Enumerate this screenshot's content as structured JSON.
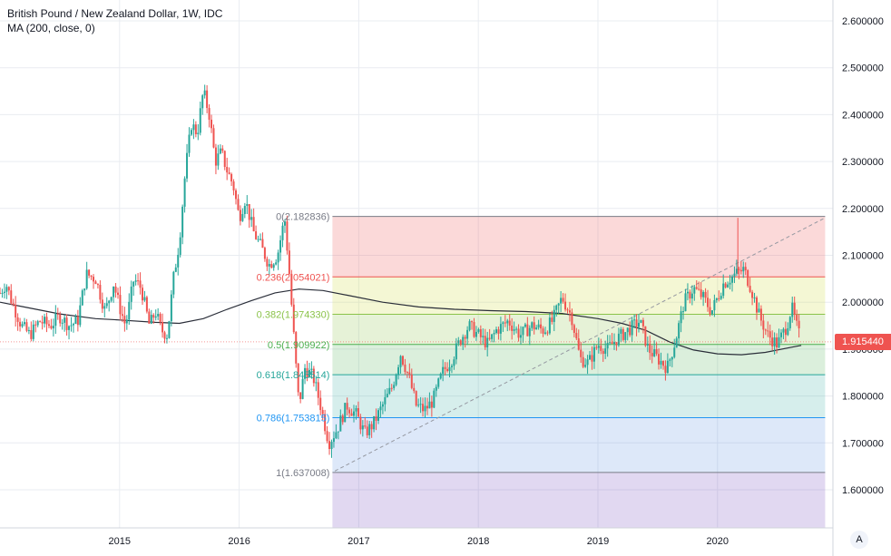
{
  "legend": {
    "title": "British Pound / New Zealand Dollar, 1W, IDC",
    "indicator": "MA (200, close, 0)"
  },
  "current_price": "1.915440",
  "auto_button_label": "A",
  "colors": {
    "up": "#26a69a",
    "down": "#ef5350",
    "ma": "#2a2e39",
    "grid": "#e9ecf1",
    "axis_text": "#131722",
    "trend": "#9598a1"
  },
  "chart_data": {
    "type": "candlestick",
    "symbol": "British Pound / New Zealand Dollar",
    "interval": "1W",
    "source": "IDC",
    "x_ticks": [
      "2015",
      "2016",
      "2017",
      "2018",
      "2019",
      "2020"
    ],
    "y_ticks": [
      "1.600000",
      "1.700000",
      "1.800000",
      "1.900000",
      "2.000000",
      "2.100000",
      "2.200000",
      "2.300000",
      "2.400000",
      "2.500000",
      "2.600000"
    ],
    "ylim": [
      1.54,
      2.63
    ],
    "last_price": 1.91544,
    "fibonacci": {
      "levels": [
        {
          "ratio": "0",
          "label": "0(2.182836)",
          "price": 2.182836,
          "color": "#787b86",
          "fill": "rgba(239,83,80,0.22)"
        },
        {
          "ratio": "0.236",
          "label": "0.236(2.054021)",
          "price": 2.054021,
          "color": "#ef5350",
          "fill": "rgba(205,220,57,0.22)"
        },
        {
          "ratio": "0.382",
          "label": "0.382(1.974330)",
          "price": 1.97433,
          "color": "#8bc34a",
          "fill": "rgba(139,195,74,0.22)"
        },
        {
          "ratio": "0.5",
          "label": "0.5(1.909922)",
          "price": 1.909922,
          "color": "#4caf50",
          "fill": "rgba(76,175,80,0.20)"
        },
        {
          "ratio": "0.618",
          "label": "0.618(1.845514)",
          "price": 1.845514,
          "color": "#26a69a",
          "fill": "rgba(0,150,136,0.16)"
        },
        {
          "ratio": "0.786",
          "label": "0.786(1.753815)",
          "price": 1.753815,
          "color": "#2196f3",
          "fill": "rgba(64,128,220,0.18)"
        },
        {
          "ratio": "1",
          "label": "1(1.637008)",
          "price": 1.637008,
          "color": "#787b86",
          "fill": "rgba(128,128,128,0.18)"
        }
      ],
      "extension_fill": "rgba(103,58,183,0.20)",
      "start": 2016.78,
      "end": 2020.9
    },
    "trend_line": {
      "x1": 2016.8,
      "y1": 1.64,
      "x2": 2020.9,
      "y2": 2.18
    },
    "ma_200": [
      [
        2014.0,
        2.0
      ],
      [
        2014.2,
        1.99
      ],
      [
        2014.5,
        1.975
      ],
      [
        2014.8,
        1.965
      ],
      [
        2015.0,
        1.962
      ],
      [
        2015.3,
        1.957
      ],
      [
        2015.5,
        1.955
      ],
      [
        2015.7,
        1.965
      ],
      [
        2015.9,
        1.985
      ],
      [
        2016.1,
        2.003
      ],
      [
        2016.3,
        2.02
      ],
      [
        2016.5,
        2.028
      ],
      [
        2016.7,
        2.025
      ],
      [
        2016.9,
        2.015
      ],
      [
        2017.2,
        2.0
      ],
      [
        2017.5,
        1.99
      ],
      [
        2017.8,
        1.985
      ],
      [
        2018.1,
        1.982
      ],
      [
        2018.4,
        1.98
      ],
      [
        2018.7,
        1.976
      ],
      [
        2019.0,
        1.965
      ],
      [
        2019.2,
        1.955
      ],
      [
        2019.4,
        1.94
      ],
      [
        2019.6,
        1.915
      ],
      [
        2019.8,
        1.898
      ],
      [
        2020.0,
        1.89
      ],
      [
        2020.2,
        1.888
      ],
      [
        2020.4,
        1.893
      ],
      [
        2020.6,
        1.903
      ],
      [
        2020.7,
        1.908
      ]
    ],
    "price_path": [
      [
        2014.0,
        2.02
      ],
      [
        2014.05,
        2.04
      ],
      [
        2014.1,
        2.0
      ],
      [
        2014.18,
        1.95
      ],
      [
        2014.25,
        1.93
      ],
      [
        2014.33,
        1.96
      ],
      [
        2014.42,
        1.95
      ],
      [
        2014.5,
        1.97
      ],
      [
        2014.58,
        1.95
      ],
      [
        2014.65,
        1.96
      ],
      [
        2014.72,
        2.06
      ],
      [
        2014.8,
        2.05
      ],
      [
        2014.88,
        1.98
      ],
      [
        2014.95,
        2.04
      ],
      [
        2015.0,
        1.99
      ],
      [
        2015.05,
        1.95
      ],
      [
        2015.12,
        2.05
      ],
      [
        2015.18,
        2.03
      ],
      [
        2015.25,
        1.95
      ],
      [
        2015.3,
        1.98
      ],
      [
        2015.35,
        1.94
      ],
      [
        2015.4,
        1.93
      ],
      [
        2015.45,
        2.05
      ],
      [
        2015.5,
        2.13
      ],
      [
        2015.55,
        2.28
      ],
      [
        2015.6,
        2.38
      ],
      [
        2015.65,
        2.36
      ],
      [
        2015.7,
        2.45
      ],
      [
        2015.75,
        2.4
      ],
      [
        2015.8,
        2.3
      ],
      [
        2015.85,
        2.32
      ],
      [
        2015.9,
        2.28
      ],
      [
        2015.95,
        2.25
      ],
      [
        2016.0,
        2.18
      ],
      [
        2016.05,
        2.22
      ],
      [
        2016.12,
        2.15
      ],
      [
        2016.18,
        2.12
      ],
      [
        2016.25,
        2.08
      ],
      [
        2016.32,
        2.1
      ],
      [
        2016.38,
        2.18
      ],
      [
        2016.42,
        2.06
      ],
      [
        2016.47,
        1.88
      ],
      [
        2016.5,
        1.78
      ],
      [
        2016.55,
        1.86
      ],
      [
        2016.62,
        1.84
      ],
      [
        2016.68,
        1.78
      ],
      [
        2016.75,
        1.7
      ],
      [
        2016.82,
        1.73
      ],
      [
        2016.9,
        1.78
      ],
      [
        2016.98,
        1.76
      ],
      [
        2017.05,
        1.72
      ],
      [
        2017.12,
        1.74
      ],
      [
        2017.2,
        1.78
      ],
      [
        2017.28,
        1.82
      ],
      [
        2017.35,
        1.89
      ],
      [
        2017.42,
        1.84
      ],
      [
        2017.48,
        1.78
      ],
      [
        2017.55,
        1.77
      ],
      [
        2017.62,
        1.79
      ],
      [
        2017.7,
        1.85
      ],
      [
        2017.78,
        1.88
      ],
      [
        2017.85,
        1.92
      ],
      [
        2017.92,
        1.95
      ],
      [
        2018.0,
        1.93
      ],
      [
        2018.08,
        1.91
      ],
      [
        2018.15,
        1.94
      ],
      [
        2018.25,
        1.96
      ],
      [
        2018.35,
        1.93
      ],
      [
        2018.45,
        1.95
      ],
      [
        2018.55,
        1.94
      ],
      [
        2018.62,
        1.96
      ],
      [
        2018.7,
        2.01
      ],
      [
        2018.78,
        1.97
      ],
      [
        2018.85,
        1.88
      ],
      [
        2018.92,
        1.87
      ],
      [
        2019.0,
        1.91
      ],
      [
        2019.08,
        1.9
      ],
      [
        2019.15,
        1.92
      ],
      [
        2019.25,
        1.94
      ],
      [
        2019.35,
        1.96
      ],
      [
        2019.42,
        1.9
      ],
      [
        2019.5,
        1.88
      ],
      [
        2019.58,
        1.86
      ],
      [
        2019.65,
        1.92
      ],
      [
        2019.72,
        2.0
      ],
      [
        2019.8,
        2.03
      ],
      [
        2019.88,
        2.01
      ],
      [
        2019.95,
        1.98
      ],
      [
        2020.05,
        2.04
      ],
      [
        2020.15,
        2.06
      ],
      [
        2020.22,
        2.07
      ],
      [
        2020.28,
        2.03
      ],
      [
        2020.35,
        1.97
      ],
      [
        2020.42,
        1.93
      ],
      [
        2020.5,
        1.91
      ],
      [
        2020.58,
        1.95
      ],
      [
        2020.62,
        1.99
      ],
      [
        2020.66,
        1.95
      ],
      [
        2020.7,
        1.915
      ]
    ]
  }
}
